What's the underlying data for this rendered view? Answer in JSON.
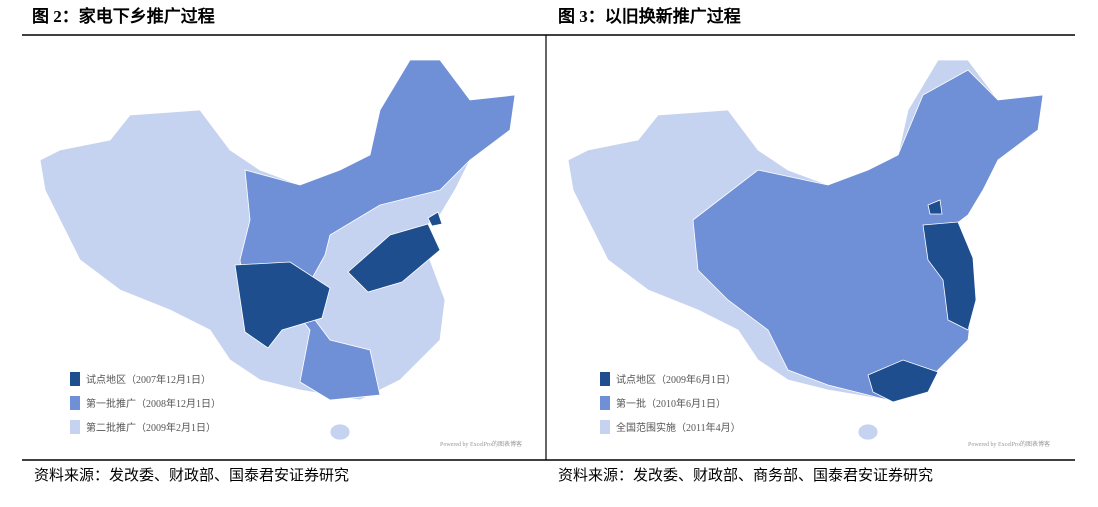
{
  "figures": [
    {
      "title": "图 2：家电下乡推广过程",
      "legend": [
        "试点地区（2007年12月1日）",
        "第一批推广（2008年12月1日）",
        "第二批推广（2009年2月1日）"
      ],
      "watermark": "Powered by ExcelPro的图表博客",
      "source": "资料来源：发改委、财政部、国泰君安证券研究"
    },
    {
      "title": "图 3：以旧换新推广过程",
      "legend": [
        "试点地区（2009年6月1日）",
        "第一批（2010年6月1日）",
        "全国范围实施（2011年4月）"
      ],
      "watermark": "Powered by ExcelPro的图表博客",
      "source": "资料来源：发改委、财政部、商务部、国泰君安证券研究"
    }
  ]
}
